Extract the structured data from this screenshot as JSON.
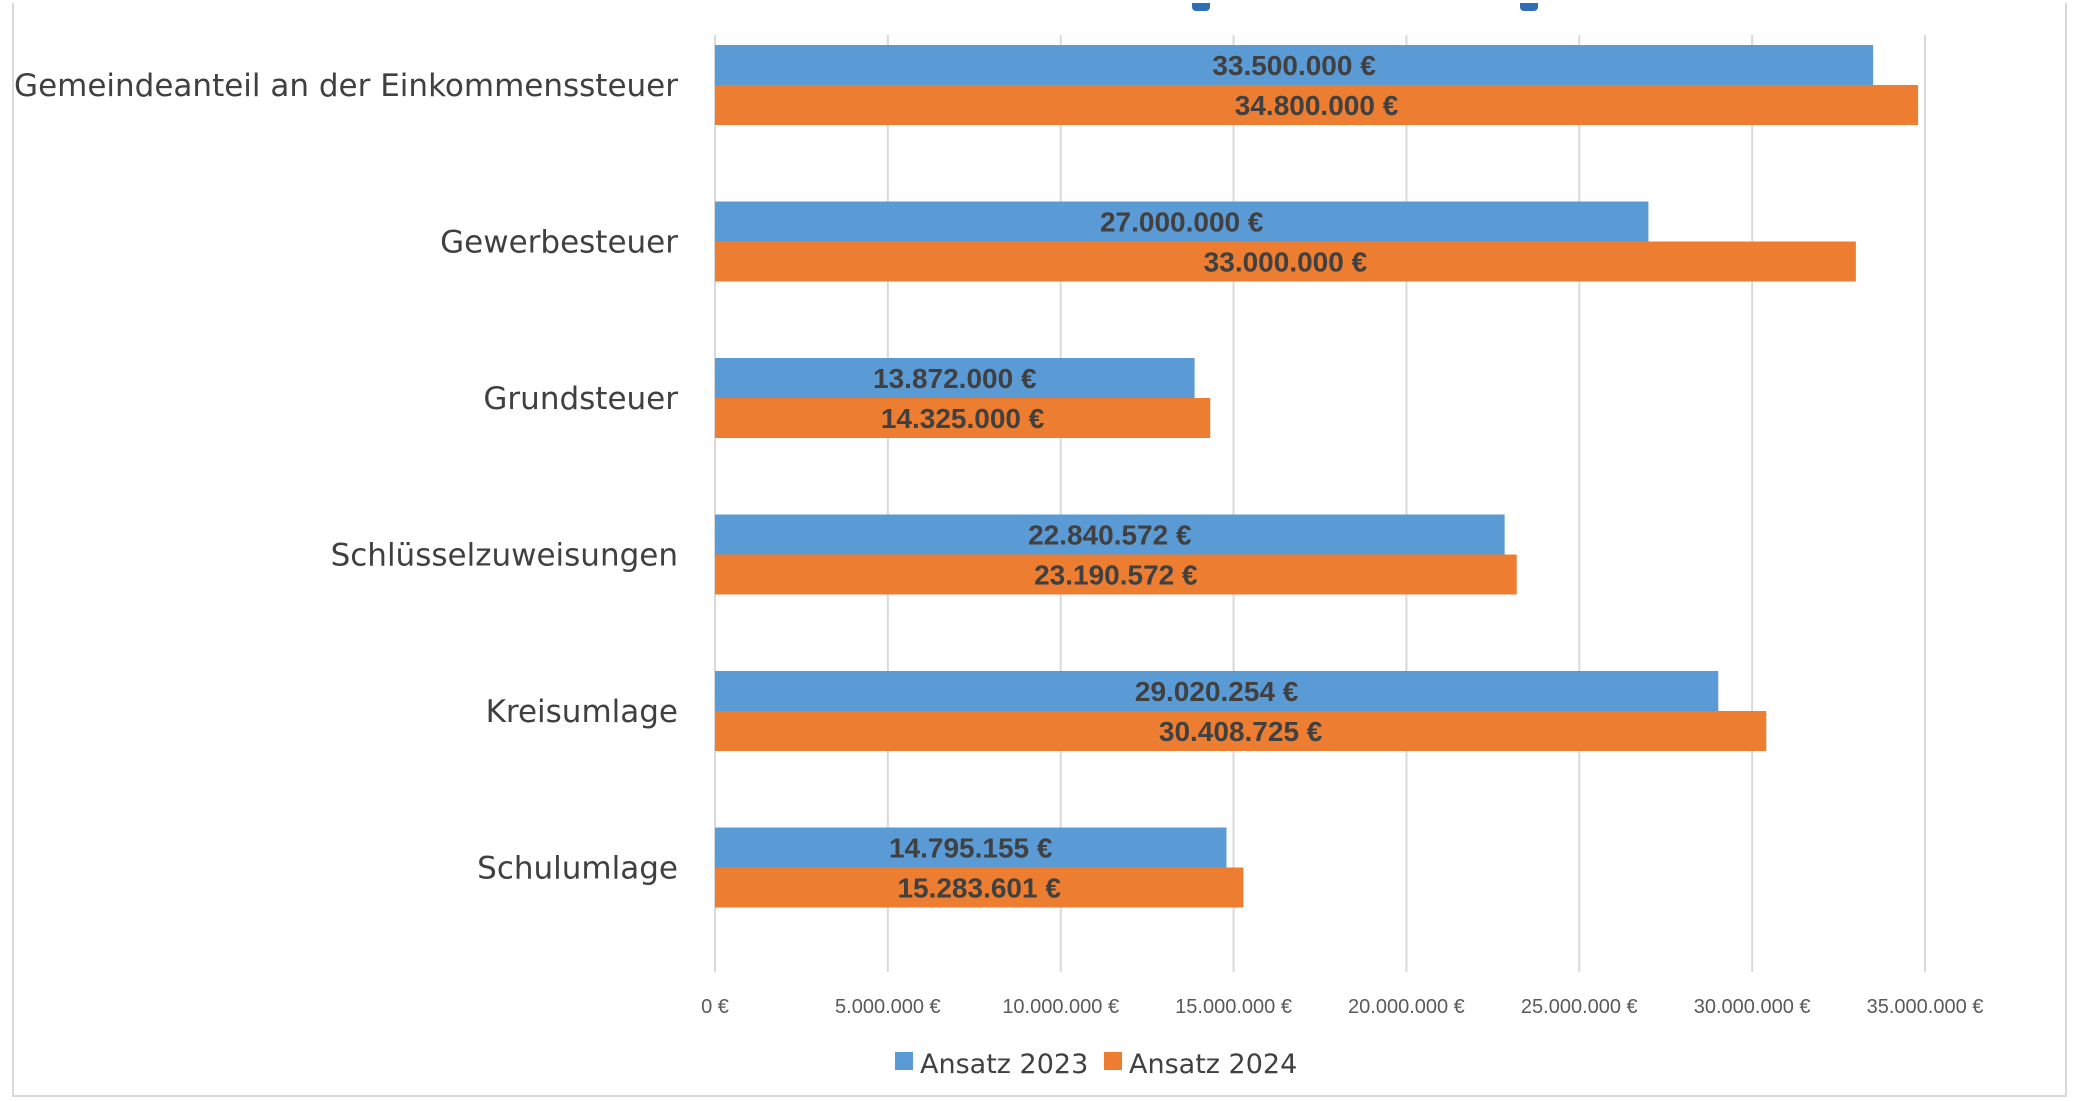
{
  "chart_data": {
    "type": "bar",
    "orientation": "horizontal",
    "categories": [
      "Gemeindeanteil an der Einkommenssteuer",
      "Gewerbesteuer",
      "Grundsteuer",
      "Schlüsselzuweisungen",
      "Kreisumlage",
      "Schulumlage"
    ],
    "series": [
      {
        "name": "Ansatz 2023",
        "color": "#5b9bd5",
        "values": [
          33500000,
          27000000,
          13872000,
          22840572,
          29020254,
          14795155
        ],
        "labels": [
          "33.500.000 €",
          "27.000.000 €",
          "13.872.000 €",
          "22.840.572 €",
          "29.020.254 €",
          "14.795.155 €"
        ]
      },
      {
        "name": "Ansatz 2024",
        "color": "#ed7d31",
        "values": [
          34800000,
          33000000,
          14325000,
          23190572,
          30408725,
          15283601
        ],
        "labels": [
          "34.800.000 €",
          "33.000.000 €",
          "14.325.000 €",
          "23.190.572 €",
          "30.408.725 €",
          "15.283.601 €"
        ]
      }
    ],
    "xlim": [
      0,
      35000000
    ],
    "ticks": [
      0,
      5000000,
      10000000,
      15000000,
      20000000,
      25000000,
      30000000,
      35000000
    ],
    "tick_labels": [
      "0 €",
      "5.000.000 €",
      "10.000.000 €",
      "15.000.000 €",
      "20.000.000 €",
      "25.000.000 €",
      "30.000.000 €",
      "35.000.000 €"
    ],
    "grid": true,
    "legend": "bottom",
    "title": "",
    "xlabel": "",
    "ylabel": ""
  }
}
